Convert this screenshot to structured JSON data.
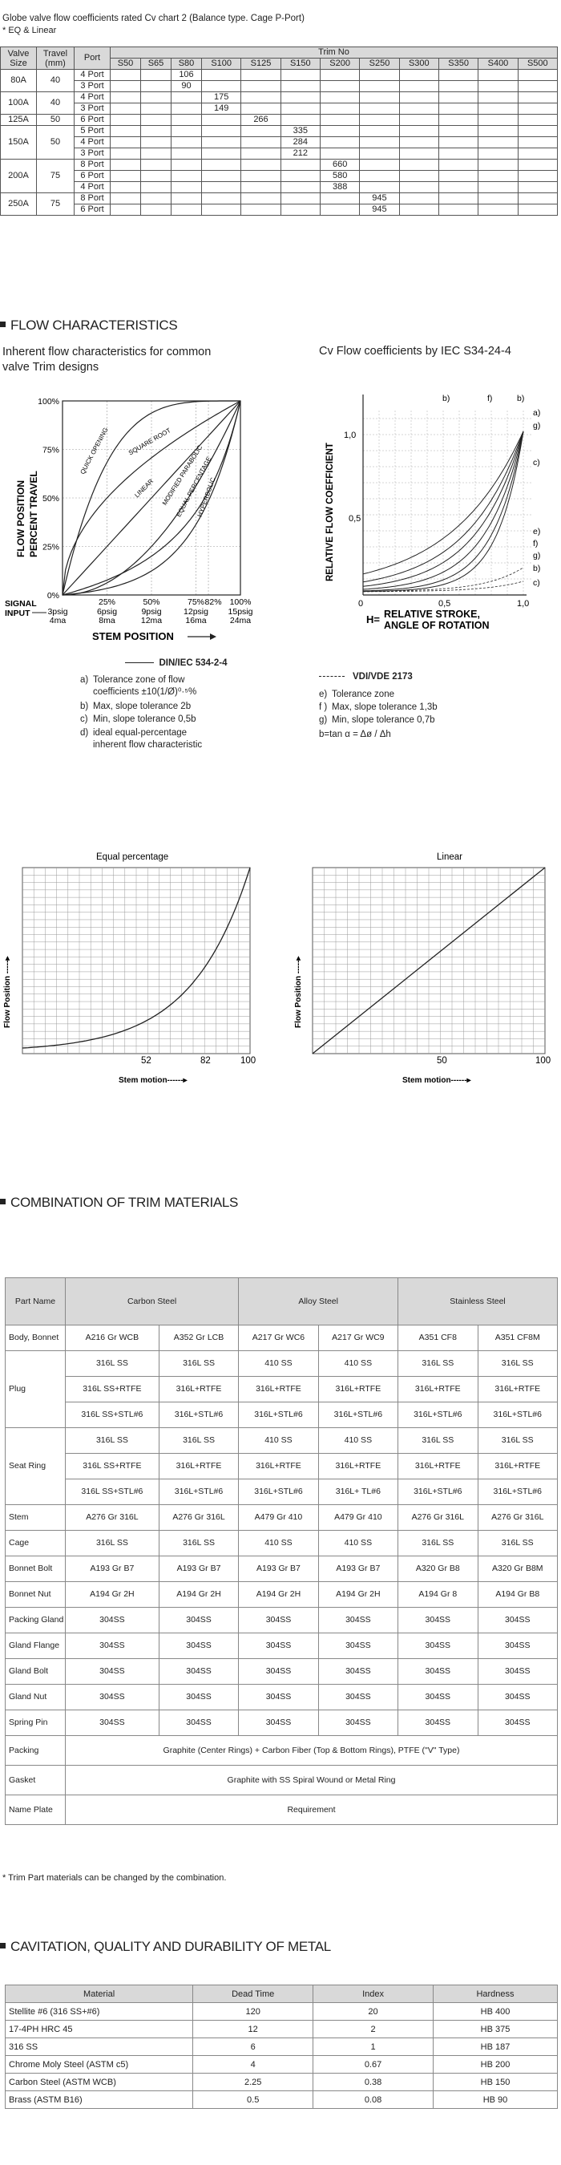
{
  "cv_chart": {
    "title": "Globe valve flow coefficients rated Cv chart 2 (Balance type. Cage P-Port)",
    "subtitle": "* EQ & Linear",
    "headers": {
      "valve_size": "Valve Size",
      "travel": "Travel (mm)",
      "port": "Port",
      "trim_no": "Trim No"
    },
    "trims": [
      "S50",
      "S65",
      "S80",
      "S100",
      "S125",
      "S150",
      "S200",
      "S250",
      "S300",
      "S350",
      "S400",
      "S500"
    ],
    "groups": [
      {
        "size": "80A",
        "travel": "40",
        "rows": [
          {
            "port": "4 Port",
            "col": 2,
            "cv": "106"
          },
          {
            "port": "3 Port",
            "col": 2,
            "cv": "90"
          }
        ]
      },
      {
        "size": "100A",
        "travel": "40",
        "rows": [
          {
            "port": "4 Port",
            "col": 3,
            "cv": "175"
          },
          {
            "port": "3 Port",
            "col": 3,
            "cv": "149"
          }
        ]
      },
      {
        "size": "125A",
        "travel": "50",
        "rows": [
          {
            "port": "6 Port",
            "col": 4,
            "cv": "266"
          }
        ]
      },
      {
        "size": "150A",
        "travel": "50",
        "rows": [
          {
            "port": "5 Port",
            "col": 5,
            "cv": "335"
          },
          {
            "port": "4 Port",
            "col": 5,
            "cv": "284"
          },
          {
            "port": "3 Port",
            "col": 5,
            "cv": "212"
          }
        ]
      },
      {
        "size": "200A",
        "travel": "75",
        "rows": [
          {
            "port": "8 Port",
            "col": 6,
            "cv": "660"
          },
          {
            "port": "6 Port",
            "col": 6,
            "cv": "580"
          },
          {
            "port": "4 Port",
            "col": 6,
            "cv": "388"
          }
        ]
      },
      {
        "size": "250A",
        "travel": "75",
        "rows": [
          {
            "port": "8 Port",
            "col": 7,
            "cv": "945"
          },
          {
            "port": "6 Port",
            "col": 7,
            "cv": "945"
          }
        ]
      }
    ]
  },
  "flow_section": {
    "heading": "FLOW CHARACTERISTICS",
    "left_title_line1": "Inherent flow characteristics for common",
    "left_title_line2": "valve Trim designs",
    "right_title": "Cv Flow coefficients by IEC S34-24-4"
  },
  "inherent_chart": {
    "y_ticks": [
      "100%",
      "75%",
      "50%",
      "25%",
      "0%"
    ],
    "y_label_1": "FLOW POSITION",
    "y_label_2": "PERCENT TRAVEL",
    "x_ticks_pct": [
      "25%",
      "50%",
      "75%",
      "82%",
      "100%"
    ],
    "x_ticks_psig": [
      "3psig",
      "6psig",
      "9psig",
      "12psig",
      "15psig"
    ],
    "x_ticks_ma": [
      "4ma",
      "8ma",
      "12ma",
      "16ma",
      "24ma"
    ],
    "signal_label_1": "SIGNAL",
    "signal_label_2": "INPUT",
    "x_label": "STEM POSITION",
    "curves": [
      "QUICK OPENING",
      "SQUARE ROOT",
      "LINEAR",
      "MODIFIED PARABOLIC",
      "EQUAL PERCENTAGE",
      "HYPERBOLIC"
    ]
  },
  "din_legend": {
    "title": "DIN/IEC 534-2-4",
    "a_label": "a)",
    "a_line1": "Tolerance zone of flow",
    "a_line2": "coefficients ±10(1/Ø)⁰·⁵%",
    "b_label": "b)",
    "b_text": "Max, slope tolerance 2b",
    "c_label": "c)",
    "c_text": "Min, slope tolerance 0,5b",
    "d_label": "d)",
    "d_line1": "ideal equal-percentage",
    "d_line2": "inherent flow characteristic"
  },
  "relative_chart": {
    "y_label": "RELATIVE FLOW COEFFICIENT",
    "y_ticks": [
      "1,0",
      "0,5"
    ],
    "x_ticks": [
      "0",
      "0,5",
      "1,0"
    ],
    "x_label_1": "RELATIVE STROKE,",
    "x_label_2": "ANGLE OF ROTATION",
    "h_label": "H=",
    "top_labels": [
      "b)",
      "f)",
      "b)"
    ],
    "right_labels_top": [
      "a)",
      "g)",
      "c)"
    ],
    "right_labels_bottom": [
      "e)",
      "f)",
      "g)",
      "b)",
      "c)"
    ]
  },
  "vdi_legend": {
    "title": "VDI/VDE 2173",
    "e_label": "e)",
    "e_text": "Tolerance zone",
    "f_label": "f )",
    "f_text": "Max, slope tolerance 1,3b",
    "g_label": "g)",
    "g_text": "Min, slope tolerance 0,7b",
    "formula": "b=tan α = Δø / Δh"
  },
  "eq_chart": {
    "title": "Equal percentage",
    "y_label": "Flow Position -----▸",
    "x_label": "Stem motion------▸",
    "x_ticks": [
      "52",
      "82",
      "100"
    ]
  },
  "lin_chart": {
    "title": "Linear",
    "y_label": "Flow Position -----▸",
    "x_label": "Stem motion------▸",
    "x_ticks": [
      "50",
      "100"
    ]
  },
  "trim_section": {
    "heading": "COMBINATION OF TRIM MATERIALS",
    "header_part": "Part Name",
    "header_groups": [
      "Carbon Steel",
      "Alloy Steel",
      "Stainless Steel"
    ],
    "rows": [
      {
        "label": "Body, Bonnet",
        "cells": [
          "A216 Gr WCB",
          "A352 Gr LCB",
          "A217 Gr WC6",
          "A217 Gr WC9",
          "A351 CF8",
          "A351 CF8M"
        ]
      },
      {
        "label": "Plug",
        "sub": [
          [
            "316L SS",
            "316L SS",
            "410 SS",
            "410 SS",
            "316L SS",
            "316L SS"
          ],
          [
            "316L SS+RTFE",
            "316L+RTFE",
            "316L+RTFE",
            "316L+RTFE",
            "316L+RTFE",
            "316L+RTFE"
          ],
          [
            "316L SS+STL#6",
            "316L+STL#6",
            "316L+STL#6",
            "316L+STL#6",
            "316L+STL#6",
            "316L+STL#6"
          ]
        ]
      },
      {
        "label": "Seat Ring",
        "sub": [
          [
            "316L SS",
            "316L SS",
            "410 SS",
            "410 SS",
            "316L SS",
            "316L SS"
          ],
          [
            "316L SS+RTFE",
            "316L+RTFE",
            "316L+RTFE",
            "316L+RTFE",
            "316L+RTFE",
            "316L+RTFE"
          ],
          [
            "316L SS+STL#6",
            "316L+STL#6",
            "316L+STL#6",
            "316L+ TL#6",
            "316L+STL#6",
            "316L+STL#6"
          ]
        ]
      },
      {
        "label": "Stem",
        "cells": [
          "A276 Gr 316L",
          "A276 Gr 316L",
          "A479 Gr 410",
          "A479 Gr 410",
          "A276 Gr 316L",
          "A276 Gr 316L"
        ]
      },
      {
        "label": "Cage",
        "cells": [
          "316L SS",
          "316L SS",
          "410 SS",
          "410 SS",
          "316L SS",
          "316L SS"
        ]
      },
      {
        "label": "Bonnet Bolt",
        "cells": [
          "A193 Gr B7",
          "A193 Gr B7",
          "A193 Gr B7",
          "A193 Gr B7",
          "A320 Gr B8",
          "A320 Gr B8M"
        ]
      },
      {
        "label": "Bonnet Nut",
        "cells": [
          "A194 Gr 2H",
          "A194 Gr 2H",
          "A194 Gr 2H",
          "A194 Gr 2H",
          "A194 Gr 8",
          "A194 Gr B8"
        ]
      },
      {
        "label": "Packing Gland",
        "cells": [
          "304SS",
          "304SS",
          "304SS",
          "304SS",
          "304SS",
          "304SS"
        ]
      },
      {
        "label": "Gland Flange",
        "cells": [
          "304SS",
          "304SS",
          "304SS",
          "304SS",
          "304SS",
          "304SS"
        ]
      },
      {
        "label": "Gland Bolt",
        "cells": [
          "304SS",
          "304SS",
          "304SS",
          "304SS",
          "304SS",
          "304SS"
        ]
      },
      {
        "label": "Gland Nut",
        "cells": [
          "304SS",
          "304SS",
          "304SS",
          "304SS",
          "304SS",
          "304SS"
        ]
      },
      {
        "label": "Spring Pin",
        "cells": [
          "304SS",
          "304SS",
          "304SS",
          "304SS",
          "304SS",
          "304SS"
        ]
      }
    ],
    "packing_label": "Packing",
    "packing_text": "Graphite (Center Rings) + Carbon Fiber (Top & Bottom Rings), PTFE (\"V\" Type)",
    "gasket_label": "Gasket",
    "gasket_text": "Graphite with SS Spiral Wound or Metal Ring",
    "nameplate_label": "Name Plate",
    "nameplate_text": "Requirement",
    "footnote": "* Trim Part materials can be changed by the combination."
  },
  "cavitation_section": {
    "heading": "CAVITATION, QUALITY AND DURABILITY OF METAL",
    "headers": [
      "Material",
      "Dead Time",
      "Index",
      "Hardness"
    ],
    "rows": [
      [
        "Stellite #6 (316 SS+#6)",
        "120",
        "20",
        "HB 400"
      ],
      [
        "17-4PH HRC 45",
        "12",
        "2",
        "HB 375"
      ],
      [
        "316 SS",
        "6",
        "1",
        "HB 187"
      ],
      [
        "Chrome Moly Steel (ASTM c5)",
        "4",
        "0.67",
        "HB 200"
      ],
      [
        "Carbon Steel (ASTM WCB)",
        "2.25",
        "0.38",
        "HB 150"
      ],
      [
        "Brass (ASTM B16)",
        "0.5",
        "0.08",
        "HB 90"
      ]
    ]
  },
  "colors": {
    "header_bg": "#d9d9d9",
    "line": "#222222",
    "grid": "#999999"
  }
}
